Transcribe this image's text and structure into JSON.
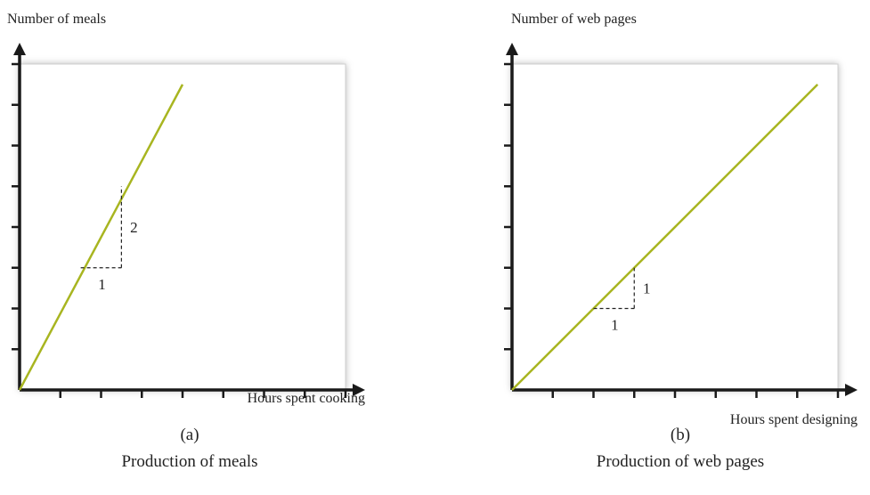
{
  "chart_data": [
    {
      "type": "line",
      "panel_label": "(a)",
      "caption": "Production of meals",
      "ylabel": "Number of meals",
      "xlabel": "Hours spent cooking",
      "xlim": [
        0,
        8
      ],
      "ylim": [
        0,
        8
      ],
      "x_ticks": 8,
      "y_ticks": 8,
      "grid": false,
      "series": [
        {
          "x": [
            0,
            4
          ],
          "y": [
            0,
            7.5
          ]
        }
      ],
      "slope_triangle": {
        "x": [
          1.5,
          2.5
        ],
        "y": [
          3,
          5
        ],
        "run_label": "1",
        "rise_label": "2"
      }
    },
    {
      "type": "line",
      "panel_label": "(b)",
      "caption": "Production of web pages",
      "ylabel": "Number of web pages",
      "xlabel": "Hours spent designing",
      "xlim": [
        0,
        8
      ],
      "ylim": [
        0,
        8
      ],
      "x_ticks": 8,
      "y_ticks": 8,
      "grid": false,
      "series": [
        {
          "x": [
            0,
            7.5
          ],
          "y": [
            0,
            7.5
          ]
        }
      ],
      "slope_triangle": {
        "x": [
          2,
          3
        ],
        "y": [
          2,
          3
        ],
        "run_label": "1",
        "rise_label": "1"
      }
    }
  ],
  "colors": {
    "line": "#a8b520",
    "axis": "#1a1a1a",
    "panel_fill": "#ffffff",
    "panel_border": "#cfcfcf",
    "dash": "#222222"
  }
}
